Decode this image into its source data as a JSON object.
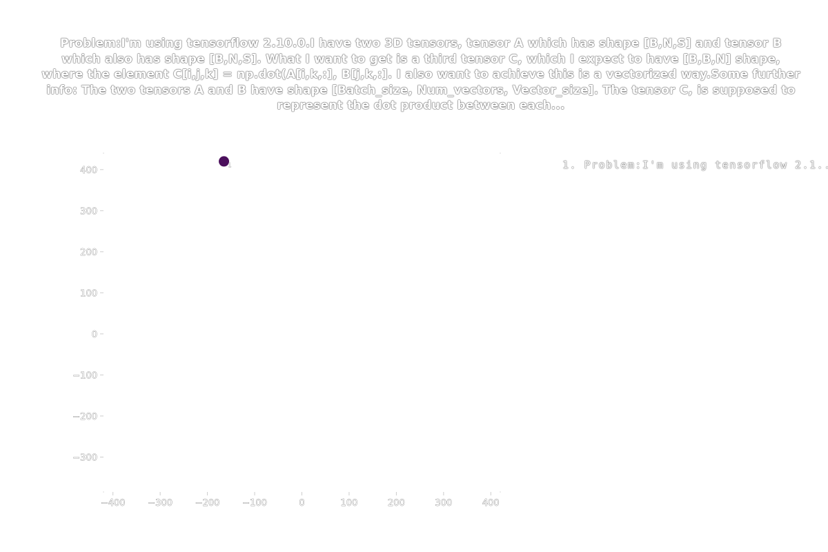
{
  "chart_data": {
    "type": "scatter",
    "title": "Problem:I'm using tensorflow 2.10.0.I have two 3D tensors, tensor A which has shape [B,N,S] and tensor B which also has shape [B,N,S]. What I want to get is a third tensor C, which I expect to have [B,B,N] shape, where the element C[i,j,k] = np.dot(A[i,k,:], B[j,k,:]. I also want to achieve this is a vectorized way.Some further info: The two tensors A and B have shape [Batch_size, Num_vectors, Vector_size]. The tensor C, is supposed to represent the dot product between each...",
    "xlim": [
      -420,
      420
    ],
    "ylim": [
      -385,
      440
    ],
    "x_ticks": [
      -400,
      -300,
      -200,
      -100,
      0,
      100,
      200,
      300,
      400
    ],
    "y_ticks": [
      -300,
      -200,
      -100,
      0,
      100,
      200,
      300,
      400
    ],
    "x_tick_labels": [
      "−400",
      "−300",
      "−200",
      "−100",
      "0",
      "100",
      "200",
      "300",
      "400"
    ],
    "y_tick_labels": [
      "−300",
      "−200",
      "−100",
      "0",
      "100",
      "200",
      "300",
      "400"
    ],
    "grid": false,
    "legend_position": "top-right",
    "series": [
      {
        "name": "1. Problem:I'm using tensorflow 2.1...",
        "color": "#4b0f5c",
        "points": [
          {
            "x": -165,
            "y": 420,
            "label": "1"
          }
        ]
      }
    ]
  }
}
